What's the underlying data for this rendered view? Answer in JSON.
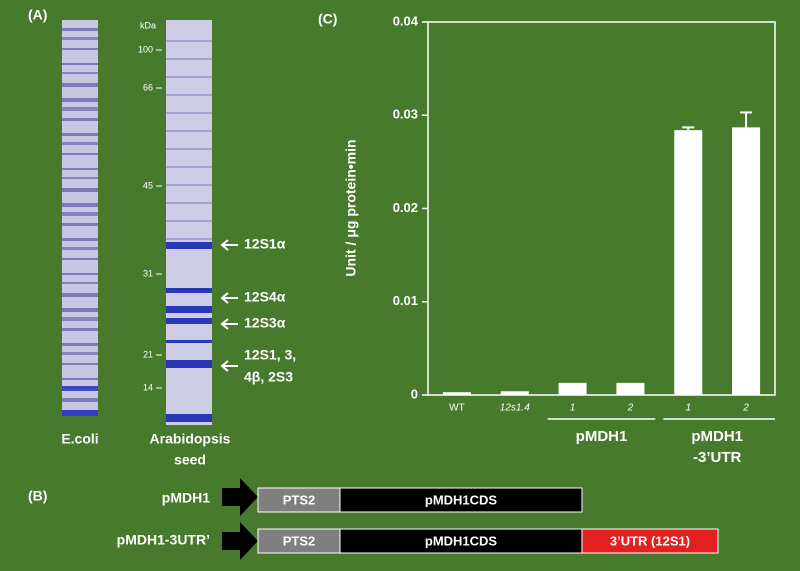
{
  "panels": {
    "a": "(A)",
    "b": "(B)",
    "c": "(C)"
  },
  "gel": {
    "unit": "kDa",
    "markers": [
      "100",
      "66",
      "45",
      "31",
      "21",
      "14"
    ],
    "lanes": [
      "E.coli",
      "Arabidopsis",
      "seed"
    ],
    "band_labels": [
      "12S1α",
      "12S4α",
      "12S3α",
      "12S1, 3,",
      "4β, 2S3"
    ]
  },
  "constructs": {
    "rows": [
      "pMDH1",
      "pMDH1-3UTR’"
    ],
    "pts": "PTS2",
    "cds": "pMDH1CDS",
    "utr": "3’UTR (12S1)"
  },
  "chart_data": {
    "type": "bar",
    "y_label": "Unit / μg protein•min",
    "categories": [
      "WT",
      "12s1.4",
      "1",
      "2",
      "1",
      "2"
    ],
    "values": [
      0.0003,
      0.0004,
      0.0013,
      0.0013,
      0.0284,
      0.0287
    ],
    "errors": [
      0,
      0,
      0,
      0,
      0.0003,
      0.0016
    ],
    "groups": [
      "pMDH1",
      "pMDH1",
      "-3’UTR"
    ],
    "color": "#ffffff",
    "ylim": [
      0,
      0.04
    ],
    "yticks": [
      0,
      0.01,
      0.02,
      0.03,
      0.04
    ]
  }
}
